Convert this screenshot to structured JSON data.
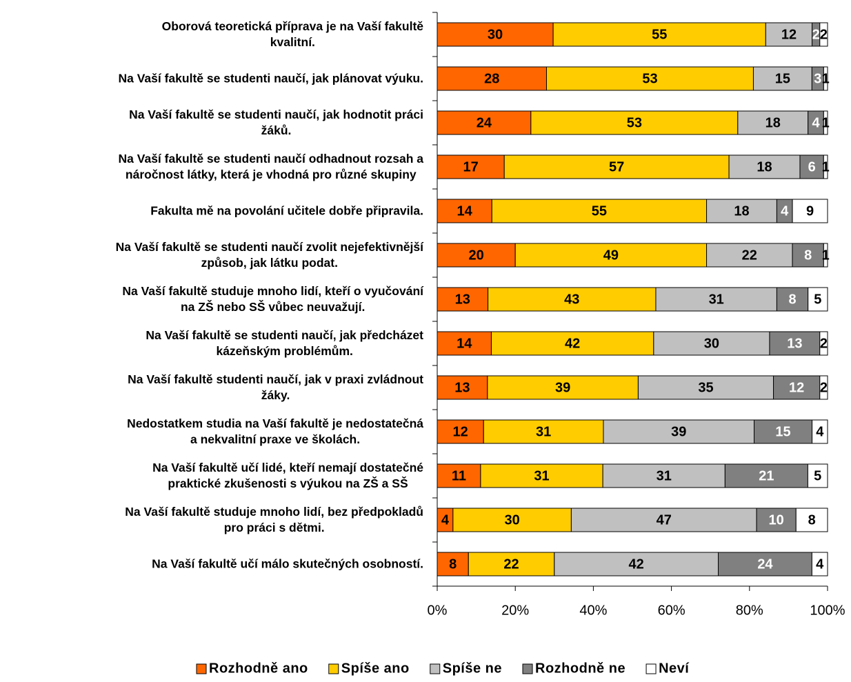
{
  "chart_data": {
    "type": "bar",
    "orientation": "horizontal",
    "stacking": "percent",
    "categories": [
      "Oborová teoretická příprava je na Vaší fakultě\nkvalitní.",
      "Na Vaší  fakultě se studenti naučí, jak plánovat výuku.",
      "Na Vaší  fakultě se studenti naučí, jak hodnotit práci\nžáků.",
      "Na Vaší fakultě se studenti naučí odhadnout rozsah a\nnáročnost látky, která je vhodná pro různé skupiny",
      "Fakulta mě na povolání učitele dobře připravila.",
      "Na Vaší fakultě se studenti naučí zvolit nejefektivnější\nzpůsob, jak látku podat.",
      "Na Vaší fakultě studuje mnoho lidí, kteří o vyučování\nna ZŠ nebo SŠ vůbec neuvažují.",
      "Na Vaší  fakultě se studenti naučí, jak předcházet\nkázeňským problémům.",
      "Na Vaší  fakultě studenti naučí, jak v praxi zvládnout\nžáky.",
      "Nedostatkem studia na Vaší fakultě je nedostatečná\na nekvalitní praxe ve školách.",
      "Na Vaší fakultě učí lidé, kteří nemají dostatečné\npraktické zkušenosti s výukou na ZŠ a SŠ",
      "Na Vaší fakultě studuje mnoho lidí, bez předpokladů\npro práci s dětmi.",
      "Na Vaší fakultě učí málo skutečných osobností."
    ],
    "series": [
      {
        "name": "Rozhodně ano",
        "color": "#ff6600",
        "label_color": "#000000",
        "values": [
          30,
          28,
          24,
          17,
          14,
          20,
          13,
          14,
          13,
          12,
          11,
          4,
          8
        ]
      },
      {
        "name": "Spíše ano",
        "color": "#ffcc00",
        "label_color": "#000000",
        "values": [
          55,
          53,
          53,
          57,
          55,
          49,
          43,
          42,
          39,
          31,
          31,
          30,
          22
        ]
      },
      {
        "name": "Spíše ne",
        "color": "#c0c0c0",
        "label_color": "#000000",
        "values": [
          12,
          15,
          18,
          18,
          18,
          22,
          31,
          30,
          35,
          39,
          31,
          47,
          42
        ]
      },
      {
        "name": "Rozhodně ne",
        "color": "#808080",
        "label_color": "#ffffff",
        "values": [
          2,
          3,
          4,
          6,
          4,
          8,
          8,
          13,
          12,
          15,
          21,
          10,
          24
        ]
      },
      {
        "name": "Neví",
        "color": "#ffffff",
        "label_color": "#000000",
        "values": [
          2,
          1,
          1,
          1,
          9,
          1,
          5,
          2,
          2,
          4,
          5,
          8,
          4
        ]
      }
    ],
    "xlim": [
      0,
      100
    ],
    "xticks": [
      {
        "value": 0,
        "label": "0%"
      },
      {
        "value": 20,
        "label": "20%"
      },
      {
        "value": 40,
        "label": "40%"
      },
      {
        "value": 60,
        "label": "60%"
      },
      {
        "value": 80,
        "label": "80%"
      },
      {
        "value": 100,
        "label": "100%"
      }
    ],
    "legend": "bottom"
  }
}
